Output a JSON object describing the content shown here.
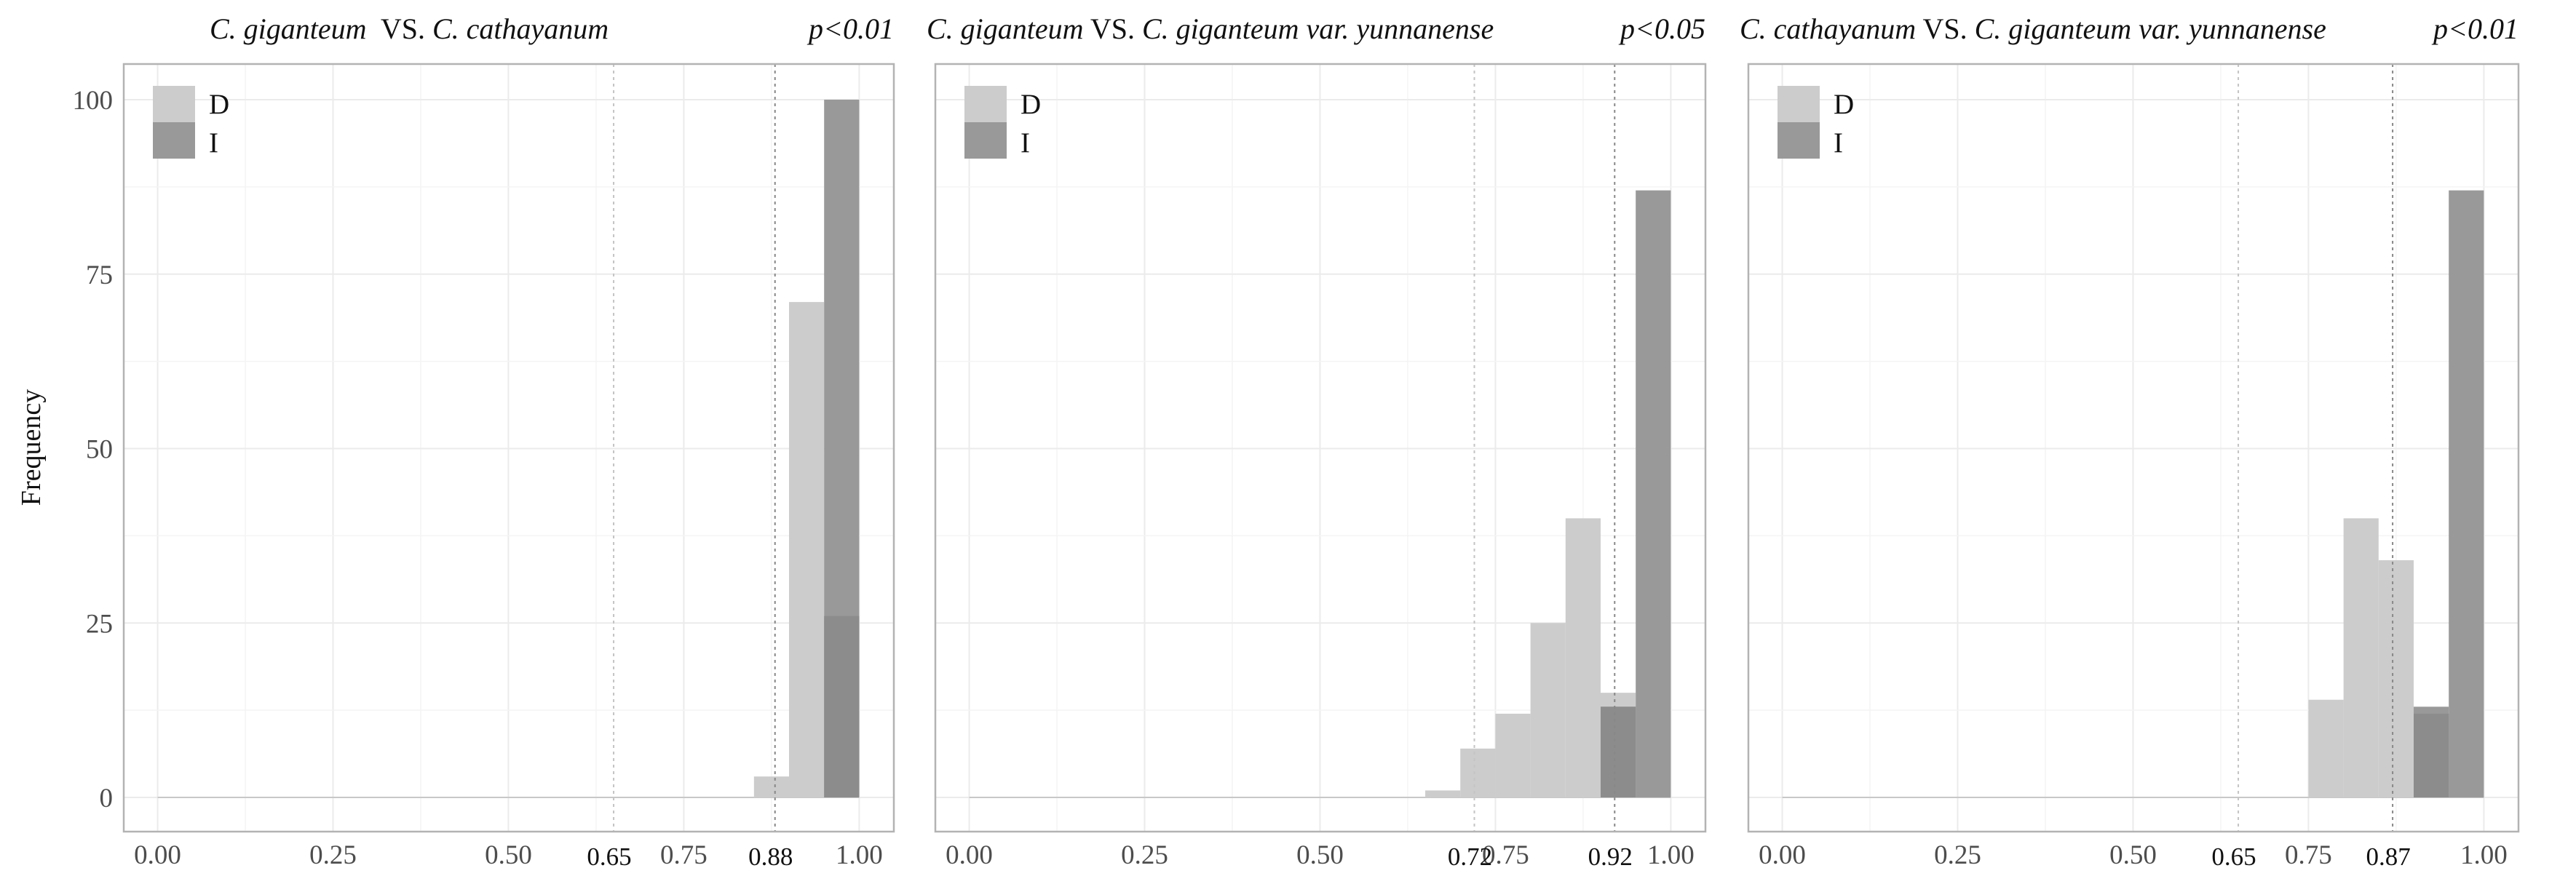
{
  "chart_data": {
    "type": "histogram",
    "ylabel": "Frequency",
    "ylim": [
      0,
      105
    ],
    "xlim": [
      0,
      1
    ],
    "y_ticks": [
      "0",
      "25",
      "50",
      "75",
      "100"
    ],
    "x_ticks": [
      "0.00",
      "0.25",
      "0.50",
      "0.75",
      "1.00"
    ],
    "legend_position": "top-left",
    "colors": {
      "D": "#cccccc",
      "I": "#999999",
      "overlap": "#8c8c8c"
    },
    "grid": true,
    "panels": [
      {
        "title": [
          {
            "text": "C. giganteum",
            "italic": true
          },
          {
            "text": "  VS. ",
            "italic": false
          },
          {
            "text": "C. cathayanum",
            "italic": true
          },
          {
            "text": "p<0.01",
            "italic": true,
            "align": "right"
          }
        ],
        "ref_lines": [
          0.65,
          0.88
        ],
        "ref_labels": [
          "0.65",
          "0.88"
        ],
        "series": [
          {
            "name": "D",
            "bins": [
              {
                "x0": 0.85,
                "x1": 0.9,
                "y": 3
              },
              {
                "x0": 0.9,
                "x1": 0.95,
                "y": 71
              },
              {
                "x0": 0.95,
                "x1": 1.0,
                "y": 26
              }
            ]
          },
          {
            "name": "I",
            "bins": [
              {
                "x0": 0.95,
                "x1": 1.0,
                "y": 100
              }
            ]
          }
        ]
      },
      {
        "title": [
          {
            "text": "C. giganteum",
            "italic": true
          },
          {
            "text": " VS. ",
            "italic": false
          },
          {
            "text": "C. giganteum var. yunnanense",
            "italic": true
          },
          {
            "text": "p<0.05",
            "italic": true,
            "align": "right"
          }
        ],
        "ref_lines": [
          0.72,
          0.92
        ],
        "ref_labels": [
          "0.72",
          "0.92"
        ],
        "series": [
          {
            "name": "D",
            "bins": [
              {
                "x0": 0.65,
                "x1": 0.7,
                "y": 1
              },
              {
                "x0": 0.7,
                "x1": 0.75,
                "y": 7
              },
              {
                "x0": 0.75,
                "x1": 0.8,
                "y": 12
              },
              {
                "x0": 0.8,
                "x1": 0.85,
                "y": 25
              },
              {
                "x0": 0.85,
                "x1": 0.9,
                "y": 40
              },
              {
                "x0": 0.9,
                "x1": 0.95,
                "y": 15
              }
            ]
          },
          {
            "name": "I",
            "bins": [
              {
                "x0": 0.9,
                "x1": 0.95,
                "y": 13
              },
              {
                "x0": 0.95,
                "x1": 1.0,
                "y": 87
              }
            ]
          }
        ]
      },
      {
        "title": [
          {
            "text": "C. cathayanum",
            "italic": true
          },
          {
            "text": " VS. ",
            "italic": false
          },
          {
            "text": "C. giganteum var. yunnanense",
            "italic": true
          },
          {
            "text": "p<0.01",
            "italic": true,
            "align": "right"
          }
        ],
        "ref_lines": [
          0.65,
          0.87
        ],
        "ref_labels": [
          "0.65",
          "0.87"
        ],
        "series": [
          {
            "name": "D",
            "bins": [
              {
                "x0": 0.75,
                "x1": 0.8,
                "y": 14
              },
              {
                "x0": 0.8,
                "x1": 0.85,
                "y": 40
              },
              {
                "x0": 0.85,
                "x1": 0.9,
                "y": 34
              },
              {
                "x0": 0.9,
                "x1": 0.95,
                "y": 12
              }
            ]
          },
          {
            "name": "I",
            "bins": [
              {
                "x0": 0.9,
                "x1": 0.95,
                "y": 13
              },
              {
                "x0": 0.95,
                "x1": 1.0,
                "y": 87
              }
            ]
          }
        ]
      }
    ]
  }
}
